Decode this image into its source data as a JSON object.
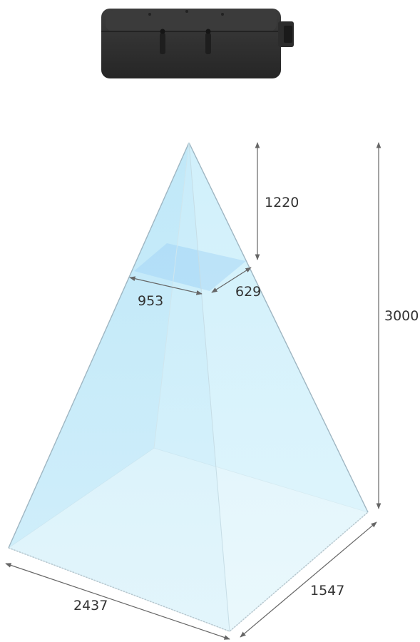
{
  "dimensions": {
    "near_width": "953",
    "near_depth": "629",
    "near_distance": "1220",
    "far_width": "2437",
    "far_depth": "1547",
    "far_distance": "3000"
  },
  "colors": {
    "device_body": "#2b2b2b",
    "device_top": "#3a3a3a",
    "pyramid_face": "#cdeefa",
    "pyramid_edge": "#9fb6c2",
    "near_plane": "#9dcff5",
    "far_plane": "#eef9fc",
    "dimension_line": "#666666",
    "label_text": "#333333"
  }
}
